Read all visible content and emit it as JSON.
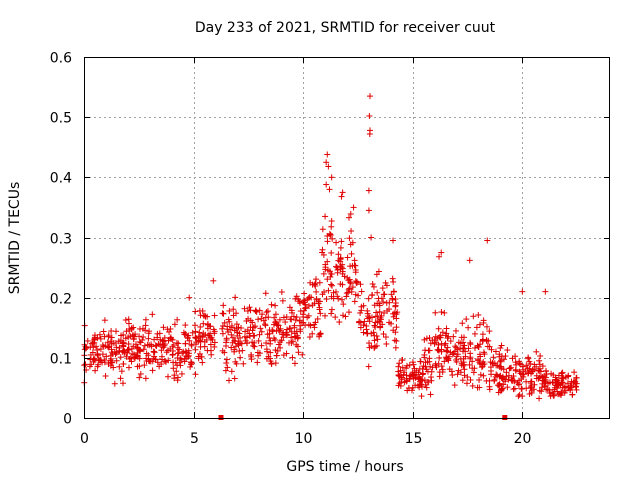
{
  "chart_data": {
    "type": "scatter",
    "title": "Day 233 of 2021, SRMTID for receiver cuut",
    "xlabel": "GPS time / hours",
    "ylabel": "SRMTID / TECUs",
    "xlim": [
      0,
      24
    ],
    "ylim": [
      0,
      0.6
    ],
    "xticks": [
      0,
      5,
      10,
      15,
      20
    ],
    "yticks": [
      0,
      0.1,
      0.2,
      0.3,
      0.4,
      0.5,
      0.6
    ],
    "xtick_labels": [
      "0",
      "5",
      "10",
      "15",
      "20"
    ],
    "ytick_labels": [
      "0",
      "0.1",
      "0.2",
      "0.3",
      "0.4",
      "0.5",
      "0.6"
    ],
    "grid": true,
    "legend": "none",
    "marker": "plus",
    "series_color": "#e00000",
    "outliers": [
      {
        "x": 13.05,
        "y": 0.535
      },
      {
        "x": 13.02,
        "y": 0.502
      },
      {
        "x": 13.05,
        "y": 0.478
      },
      {
        "x": 13.04,
        "y": 0.472
      },
      {
        "x": 11.1,
        "y": 0.438
      },
      {
        "x": 11.05,
        "y": 0.425
      },
      {
        "x": 11.15,
        "y": 0.418
      },
      {
        "x": 11.3,
        "y": 0.4
      },
      {
        "x": 11.05,
        "y": 0.388
      },
      {
        "x": 11.2,
        "y": 0.38
      },
      {
        "x": 13.0,
        "y": 0.378
      },
      {
        "x": 11.8,
        "y": 0.375
      },
      {
        "x": 11.75,
        "y": 0.368
      },
      {
        "x": 12.3,
        "y": 0.35
      },
      {
        "x": 13.0,
        "y": 0.345
      },
      {
        "x": 11.0,
        "y": 0.335
      },
      {
        "x": 13.1,
        "y": 0.3
      },
      {
        "x": 18.4,
        "y": 0.295
      },
      {
        "x": 14.1,
        "y": 0.295
      },
      {
        "x": 16.3,
        "y": 0.275
      },
      {
        "x": 16.2,
        "y": 0.268
      },
      {
        "x": 17.6,
        "y": 0.262
      },
      {
        "x": 20.0,
        "y": 0.21
      },
      {
        "x": 21.05,
        "y": 0.21
      },
      {
        "x": 5.9,
        "y": 0.228
      },
      {
        "x": 4.8,
        "y": 0.2
      }
    ],
    "dense_data": [
      {
        "x_range": [
          0,
          2
        ],
        "y_center": 0.11,
        "y_spread": 0.04
      },
      {
        "x_range": [
          2,
          4
        ],
        "y_center": 0.115,
        "y_spread": 0.04
      },
      {
        "x_range": [
          4,
          5
        ],
        "y_center": 0.11,
        "y_spread": 0.04
      },
      {
        "x_range": [
          5,
          6
        ],
        "y_center": 0.135,
        "y_spread": 0.045
      },
      {
        "x_range": [
          6.3,
          8
        ],
        "y_center": 0.135,
        "y_spread": 0.05
      },
      {
        "x_range": [
          8,
          9
        ],
        "y_center": 0.14,
        "y_spread": 0.05
      },
      {
        "x_range": [
          9,
          10
        ],
        "y_center": 0.155,
        "y_spread": 0.05
      },
      {
        "x_range": [
          10,
          10.8
        ],
        "y_center": 0.18,
        "y_spread": 0.05
      },
      {
        "x_range": [
          10.8,
          11.4
        ],
        "y_center": 0.24,
        "y_spread": 0.08
      },
      {
        "x_range": [
          11.4,
          12.5
        ],
        "y_center": 0.23,
        "y_spread": 0.08
      },
      {
        "x_range": [
          12.5,
          13.5
        ],
        "y_center": 0.17,
        "y_spread": 0.07
      },
      {
        "x_range": [
          13.5,
          14.3
        ],
        "y_center": 0.18,
        "y_spread": 0.06
      },
      {
        "x_range": [
          14.3,
          15.5
        ],
        "y_center": 0.07,
        "y_spread": 0.025
      },
      {
        "x_range": [
          15.5,
          16
        ],
        "y_center": 0.09,
        "y_spread": 0.04
      },
      {
        "x_range": [
          16,
          17
        ],
        "y_center": 0.11,
        "y_spread": 0.05
      },
      {
        "x_range": [
          17,
          18.5
        ],
        "y_center": 0.11,
        "y_spread": 0.05
      },
      {
        "x_range": [
          18.5,
          19.5
        ],
        "y_center": 0.08,
        "y_spread": 0.035
      },
      {
        "x_range": [
          19.5,
          21
        ],
        "y_center": 0.07,
        "y_spread": 0.035
      },
      {
        "x_range": [
          21,
          22.5
        ],
        "y_center": 0.055,
        "y_spread": 0.02
      }
    ],
    "zero_points": [
      {
        "x": 6.25,
        "y": 0
      },
      {
        "x": 19.2,
        "y": 0
      }
    ]
  }
}
